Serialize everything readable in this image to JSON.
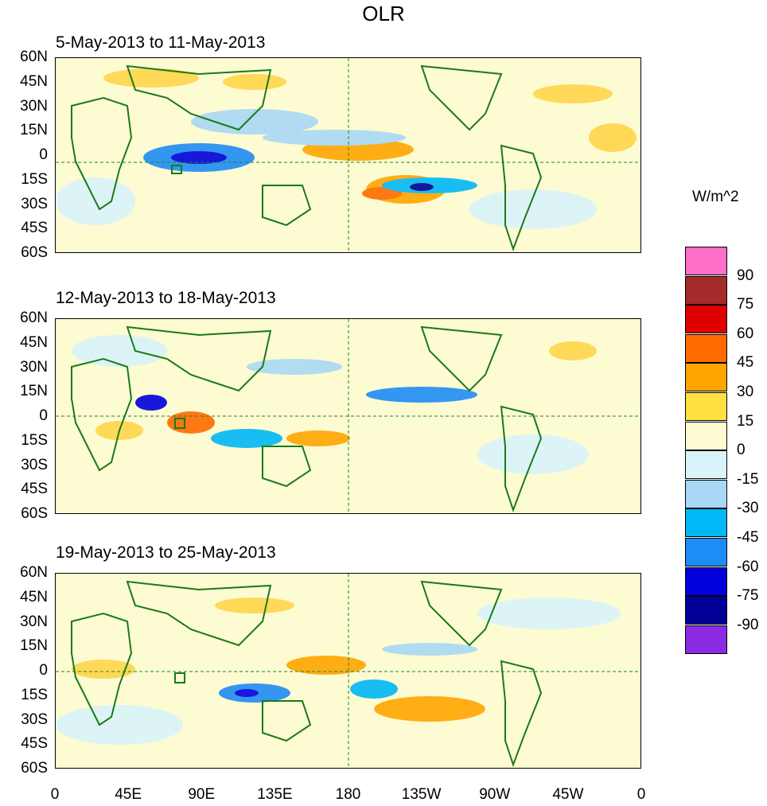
{
  "title": "OLR",
  "panels": [
    {
      "label": "5-May-2013 to 11-May-2013"
    },
    {
      "label": "12-May-2013 to 18-May-2013"
    },
    {
      "label": "19-May-2013 to 25-May-2013"
    }
  ],
  "lat_labels": [
    "60N",
    "45N",
    "30N",
    "15N",
    "0",
    "15S",
    "30S",
    "45S",
    "60S"
  ],
  "lon_labels": [
    "0",
    "45E",
    "90E",
    "135E",
    "180",
    "135W",
    "90W",
    "45W",
    "0"
  ],
  "colorbar": {
    "unit": "W/m^2",
    "labels": [
      "90",
      "75",
      "60",
      "45",
      "30",
      "15",
      "0",
      "-15",
      "-30",
      "-45",
      "-60",
      "-75",
      "-90"
    ],
    "colors": [
      "#ff6ec7",
      "#a52a2a",
      "#e00000",
      "#ff6a00",
      "#ffa500",
      "#ffe040",
      "#fdfbd2",
      "#d9f3fb",
      "#a8d8f5",
      "#00b8f5",
      "#1e8cf5",
      "#0000dd",
      "#000099",
      "#8a2be2"
    ]
  }
}
